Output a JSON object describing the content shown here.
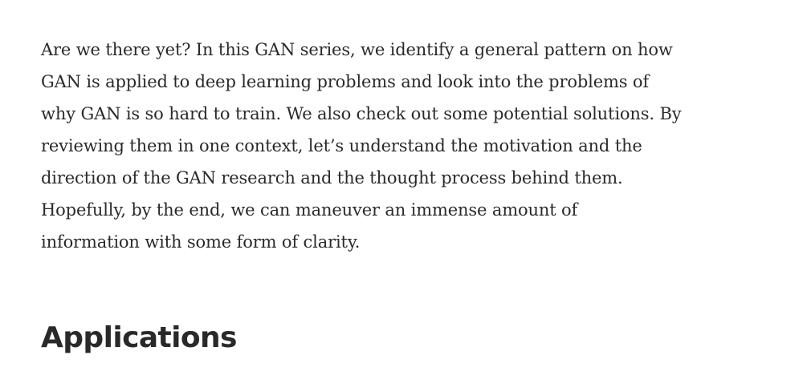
{
  "article": {
    "intro_lines": [
      "Are we there yet? In this GAN series, we identify a general pattern on how",
      "GAN is applied to deep learning problems and look into the problems of",
      "why GAN is so hard to train. We also check out some potential solutions. By",
      "reviewing them in one context, let’s understand the motivation and the",
      "direction of the GAN research and the thought process behind them.",
      "Hopefully, by the end, we can maneuver an immense amount of",
      "information with some form of clarity."
    ],
    "section_heading": "Applications"
  },
  "colors": {
    "text": "#292929",
    "background": "#ffffff"
  }
}
